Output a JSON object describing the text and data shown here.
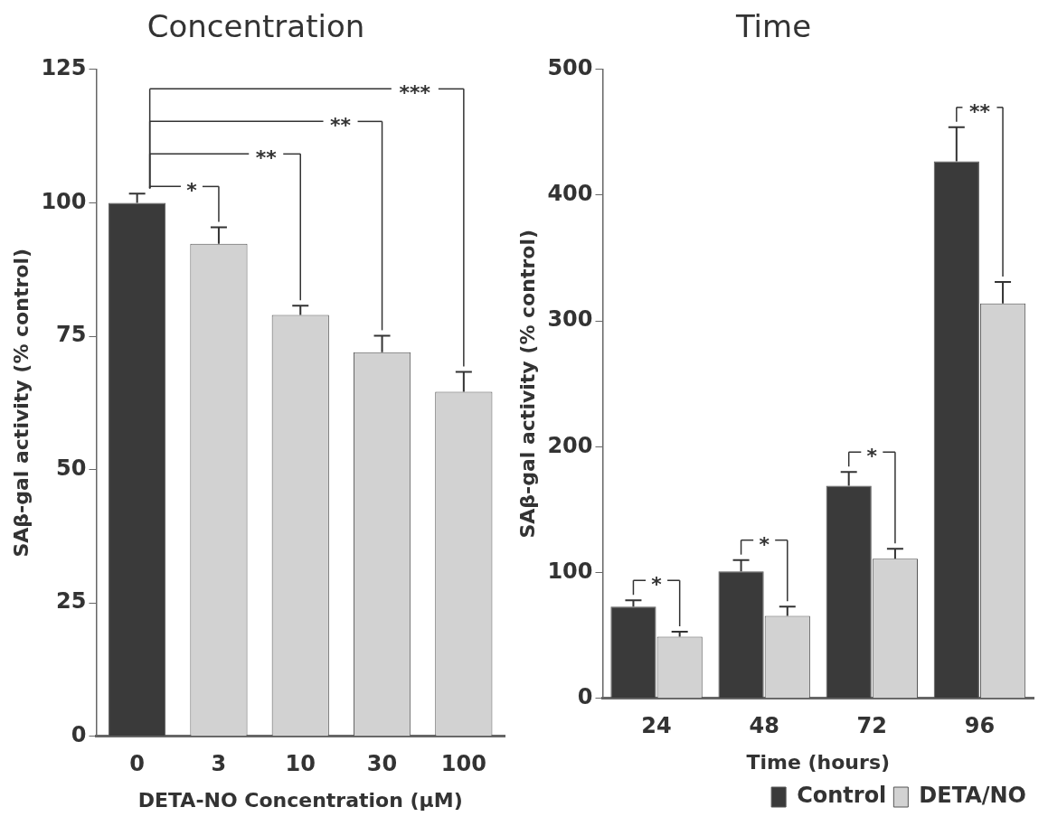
{
  "chart_data": [
    {
      "type": "bar",
      "title": "Concentration",
      "xlabel": "DETA-NO Concentration (μM)",
      "ylabel": "SAβ-gal activity (% control)",
      "categories": [
        "0",
        "3",
        "10",
        "30",
        "100"
      ],
      "values": [
        100,
        92.3,
        79,
        72,
        64.6
      ],
      "errors": [
        [
          100,
          101.7
        ],
        [
          92.3,
          95.4
        ],
        [
          79,
          80.7
        ],
        [
          72,
          75.1
        ],
        [
          64.6,
          68.3
        ]
      ],
      "colors": [
        "#3a3a3a",
        "#d2d2d2",
        "#d2d2d2",
        "#d2d2d2",
        "#d2d2d2"
      ],
      "ylim": [
        0,
        125
      ],
      "yticks": [
        0,
        25,
        50,
        75,
        100,
        125
      ],
      "grid": false,
      "legend": false,
      "annotations": [
        "*",
        "**",
        "**",
        "***"
      ]
    },
    {
      "type": "bar",
      "title": "Time",
      "xlabel": "Time (hours)",
      "ylabel": "SAβ-gal activity (% control)",
      "categories": [
        "24",
        "48",
        "72",
        "96"
      ],
      "series": [
        {
          "name": "Control",
          "color": "#3a3a3a",
          "values": [
            73,
            101,
            169,
            427
          ],
          "errors": [
            [
              73,
              78
            ],
            [
              101,
              110
            ],
            [
              169,
              180
            ],
            [
              427,
              454
            ]
          ]
        },
        {
          "name": "DETA/NO",
          "color": "#d2d2d2",
          "values": [
            49,
            65.5,
            111,
            314
          ],
          "errors": [
            [
              49,
              53
            ],
            [
              65.5,
              73
            ],
            [
              111,
              119
            ],
            [
              314,
              331
            ]
          ]
        }
      ],
      "ylim": [
        0,
        500
      ],
      "yticks": [
        0,
        100,
        200,
        300,
        400,
        500
      ],
      "grid": false,
      "legend": "bottom right",
      "annotations": [
        "*",
        "*",
        "*",
        "**"
      ]
    }
  ]
}
